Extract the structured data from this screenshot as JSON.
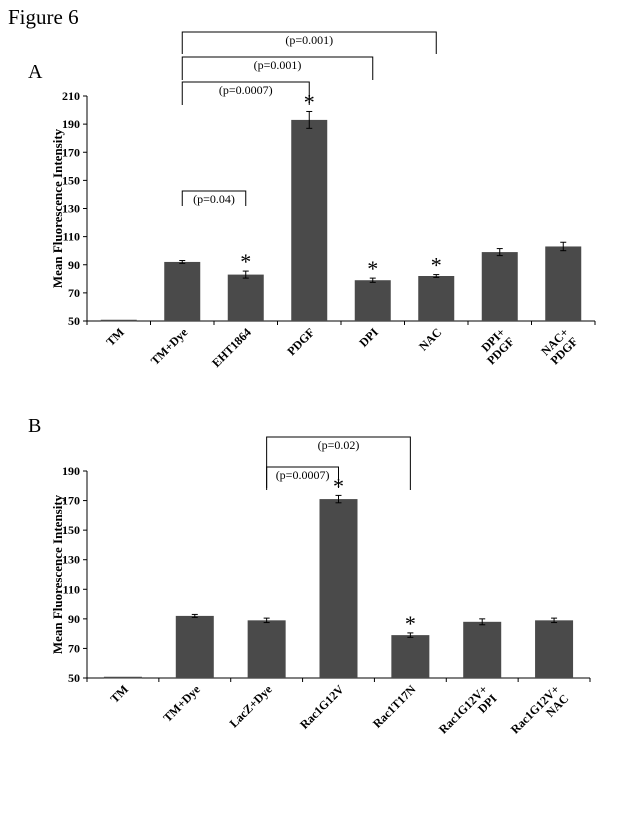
{
  "figure_title": "Figure 6",
  "colors": {
    "bar": "#4a4a4a",
    "axis": "#000000",
    "text": "#111111"
  },
  "chart_data": [
    {
      "type": "bar",
      "panel": "A",
      "ylabel": "Mean Fluorescence Intensity",
      "ylim": [
        50,
        210
      ],
      "yticks": [
        50,
        70,
        90,
        110,
        130,
        150,
        170,
        190,
        210
      ],
      "categories": [
        "TM",
        "TM+Dye",
        "EHT1864",
        "PDGF",
        "DPI",
        "NAC",
        "DPI+\nPDGF",
        "NAC+\nPDGF"
      ],
      "values": [
        50,
        92,
        83,
        193,
        79,
        82,
        99,
        103
      ],
      "errors": [
        0,
        1,
        2.5,
        6,
        1.5,
        1,
        2.5,
        3
      ],
      "significant": [
        false,
        false,
        true,
        true,
        true,
        true,
        false,
        false
      ],
      "comparisons": [
        {
          "from": 1,
          "to": 5,
          "label": "(p=0.001)"
        },
        {
          "from": 1,
          "to": 4,
          "label": "(p=0.001)"
        },
        {
          "from": 1,
          "to": 3,
          "label": "(p=0.0007)"
        },
        {
          "from": 1,
          "to": 2,
          "label": "(p=0.04)"
        }
      ],
      "grid": false,
      "legend": false
    },
    {
      "type": "bar",
      "panel": "B",
      "ylabel": "Mean Fluorescence Intensity",
      "ylim": [
        50,
        190
      ],
      "yticks": [
        50,
        70,
        90,
        110,
        130,
        150,
        170,
        190
      ],
      "categories": [
        "TM",
        "TM+Dye",
        "LacZ+Dye",
        "Rac1G12V",
        "Rac1T17N",
        "Rac1G12V+\nDPI",
        "Rac1G12V+\nNAC"
      ],
      "values": [
        50,
        92,
        89,
        171,
        79,
        88,
        89
      ],
      "errors": [
        0,
        1,
        1.5,
        2.5,
        1.5,
        2,
        1.5
      ],
      "significant": [
        false,
        false,
        false,
        true,
        true,
        false,
        false
      ],
      "comparisons": [
        {
          "from": 2,
          "to": 4,
          "label": "(p=0.02)"
        },
        {
          "from": 2,
          "to": 3,
          "label": "(p=0.0007)"
        }
      ],
      "grid": false,
      "legend": false
    }
  ]
}
